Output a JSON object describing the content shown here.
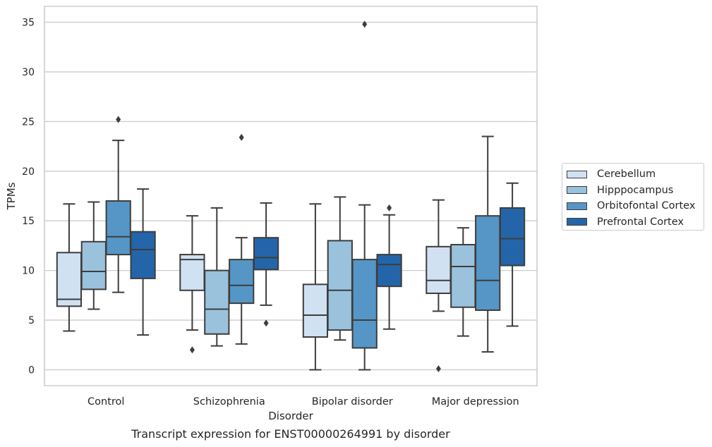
{
  "caption": "Transcript expression for ENST00000264991 by disorder",
  "chart_data": {
    "type": "boxplot",
    "title": "",
    "xlabel": "Disorder",
    "ylabel": "TPMs",
    "ylim": [
      -1.6,
      36.6
    ],
    "yticks": [
      0,
      5,
      10,
      15,
      20,
      25,
      30,
      35
    ],
    "grid": true,
    "legend_position": "right",
    "categories": [
      "Control",
      "Schizophrenia",
      "Bipolar disorder",
      "Major depression"
    ],
    "series": [
      {
        "name": "Cerebellum",
        "color": "#d0e1f2",
        "boxes": [
          {
            "whislo": 3.9,
            "q1": 6.4,
            "med": 7.1,
            "q3": 11.8,
            "whishi": 16.7,
            "fliers": []
          },
          {
            "whislo": 4.0,
            "q1": 8.0,
            "med": 11.1,
            "q3": 11.6,
            "whishi": 15.5,
            "fliers": [
              2.0
            ]
          },
          {
            "whislo": 0.0,
            "q1": 3.3,
            "med": 5.5,
            "q3": 8.6,
            "whishi": 16.7,
            "fliers": []
          },
          {
            "whislo": 5.9,
            "q1": 7.7,
            "med": 9.0,
            "q3": 12.4,
            "whishi": 17.1,
            "fliers": [
              0.1
            ]
          }
        ]
      },
      {
        "name": "Hipppocampus",
        "color": "#9ac2dd",
        "boxes": [
          {
            "whislo": 6.1,
            "q1": 8.1,
            "med": 9.9,
            "q3": 12.9,
            "whishi": 16.9,
            "fliers": []
          },
          {
            "whislo": 2.4,
            "q1": 3.6,
            "med": 6.1,
            "q3": 10.0,
            "whishi": 16.3,
            "fliers": []
          },
          {
            "whislo": 3.0,
            "q1": 4.0,
            "med": 8.0,
            "q3": 13.0,
            "whishi": 17.4,
            "fliers": []
          },
          {
            "whislo": 3.4,
            "q1": 6.3,
            "med": 10.4,
            "q3": 12.6,
            "whishi": 14.3,
            "fliers": []
          }
        ]
      },
      {
        "name": "Orbitofontal Cortex",
        "color": "#5696c6",
        "boxes": [
          {
            "whislo": 7.8,
            "q1": 11.6,
            "med": 13.4,
            "q3": 17.0,
            "whishi": 23.1,
            "fliers": [
              25.2
            ]
          },
          {
            "whislo": 2.6,
            "q1": 6.7,
            "med": 8.5,
            "q3": 11.1,
            "whishi": 13.3,
            "fliers": [
              23.4
            ]
          },
          {
            "whislo": 0.0,
            "q1": 2.2,
            "med": 5.0,
            "q3": 11.1,
            "whishi": 16.6,
            "fliers": [
              34.8
            ]
          },
          {
            "whislo": 1.8,
            "q1": 6.0,
            "med": 9.0,
            "q3": 15.5,
            "whishi": 23.5,
            "fliers": []
          }
        ]
      },
      {
        "name": "Prefrontal Cortex",
        "color": "#2465a9",
        "boxes": [
          {
            "whislo": 3.5,
            "q1": 9.2,
            "med": 12.1,
            "q3": 13.9,
            "whishi": 18.2,
            "fliers": []
          },
          {
            "whislo": 6.5,
            "q1": 10.1,
            "med": 11.3,
            "q3": 13.3,
            "whishi": 16.8,
            "fliers": [
              4.7
            ]
          },
          {
            "whislo": 4.1,
            "q1": 8.4,
            "med": 10.6,
            "q3": 11.6,
            "whishi": 15.6,
            "fliers": [
              16.3
            ]
          },
          {
            "whislo": 4.4,
            "q1": 10.5,
            "med": 13.2,
            "q3": 16.3,
            "whishi": 18.8,
            "fliers": []
          }
        ]
      }
    ]
  }
}
